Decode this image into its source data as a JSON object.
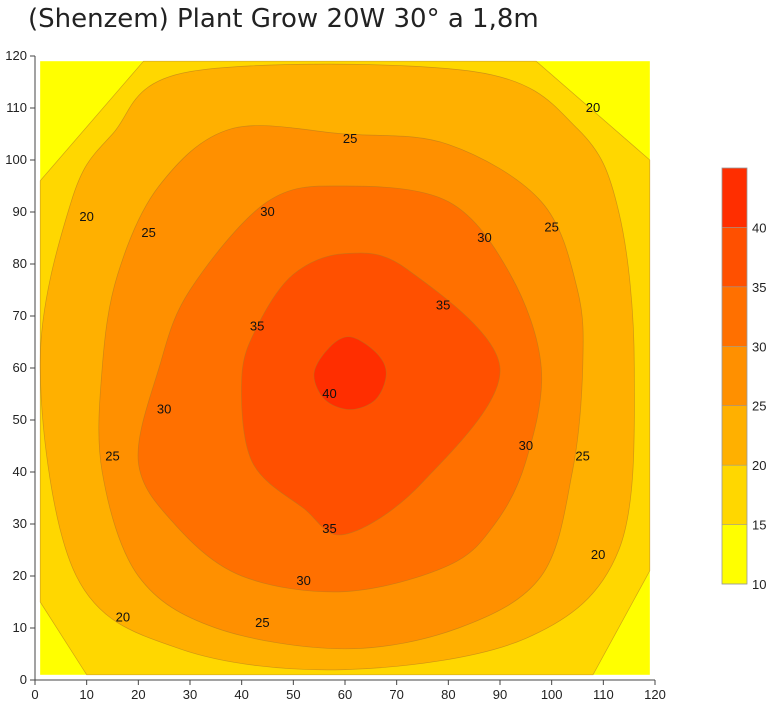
{
  "chart_data": {
    "type": "contour",
    "title": "(Shenzem) Plant Grow 20W 30° a 1,8m",
    "xlabel": "",
    "ylabel": "",
    "xlim": [
      0,
      120
    ],
    "ylim": [
      0,
      120
    ],
    "x_ticks": [
      0,
      10,
      20,
      30,
      40,
      50,
      60,
      70,
      80,
      90,
      100,
      110,
      120
    ],
    "y_ticks": [
      0,
      10,
      20,
      30,
      40,
      50,
      60,
      70,
      80,
      90,
      100,
      110,
      120
    ],
    "grid": false,
    "legend": "right",
    "colorbar": {
      "ticks": [
        10,
        15,
        20,
        25,
        30,
        35,
        40
      ],
      "levels": [
        10,
        15,
        20,
        25,
        30,
        35,
        40,
        45
      ],
      "colors": [
        "#ffff00",
        "#ffd700",
        "#ffb000",
        "#ff9000",
        "#ff7000",
        "#ff5000",
        "#ff2e00"
      ]
    },
    "field_extent": {
      "x": [
        1,
        119
      ],
      "y": [
        1,
        119
      ]
    },
    "contours": [
      {
        "level": 15,
        "fill_above": "#ffd700",
        "points": [
          [
            21,
            119
          ],
          [
            97,
            119
          ],
          [
            119,
            100
          ],
          [
            119,
            21
          ],
          [
            108,
            1
          ],
          [
            10,
            1
          ],
          [
            1,
            15
          ],
          [
            1,
            96
          ]
        ]
      },
      {
        "level": 20,
        "fill_above": "#ffb000",
        "points": [
          [
            30,
            117
          ],
          [
            85,
            117
          ],
          [
            105,
            106
          ],
          [
            113,
            90
          ],
          [
            116,
            60
          ],
          [
            113,
            25
          ],
          [
            95,
            8
          ],
          [
            60,
            2
          ],
          [
            28,
            6
          ],
          [
            8,
            20
          ],
          [
            1,
            60
          ],
          [
            7,
            92
          ],
          [
            15,
            105
          ]
        ]
      },
      {
        "level": 25,
        "fill_above": "#ff9000",
        "points": [
          [
            38,
            106
          ],
          [
            60,
            105
          ],
          [
            80,
            103
          ],
          [
            98,
            92
          ],
          [
            105,
            75
          ],
          [
            106,
            60
          ],
          [
            104,
            40
          ],
          [
            98,
            20
          ],
          [
            82,
            10
          ],
          [
            60,
            6
          ],
          [
            35,
            10
          ],
          [
            20,
            20
          ],
          [
            13,
            40
          ],
          [
            13,
            60
          ],
          [
            16,
            78
          ],
          [
            24,
            95
          ]
        ]
      },
      {
        "level": 30,
        "fill_above": "#ff7000",
        "points": [
          [
            45,
            92
          ],
          [
            60,
            95
          ],
          [
            80,
            92
          ],
          [
            92,
            78
          ],
          [
            98,
            60
          ],
          [
            95,
            42
          ],
          [
            89,
            30
          ],
          [
            80,
            22
          ],
          [
            60,
            17
          ],
          [
            40,
            20
          ],
          [
            27,
            30
          ],
          [
            20,
            42
          ],
          [
            24,
            60
          ],
          [
            30,
            75
          ]
        ]
      },
      {
        "level": 35,
        "fill_above": "#ff5000",
        "points": [
          [
            50,
            78
          ],
          [
            60,
            82
          ],
          [
            72,
            79
          ],
          [
            90,
            60
          ],
          [
            75,
            38
          ],
          [
            60,
            28
          ],
          [
            52,
            33
          ],
          [
            42,
            42
          ],
          [
            40,
            58
          ],
          [
            43,
            68
          ]
        ]
      },
      {
        "level": 40,
        "fill_above": "#ff2e00",
        "points": [
          [
            57,
            64
          ],
          [
            61,
            66
          ],
          [
            66,
            63
          ],
          [
            68,
            59
          ],
          [
            66,
            54
          ],
          [
            61,
            52
          ],
          [
            56,
            54
          ],
          [
            54,
            59
          ]
        ]
      }
    ],
    "contour_labels": [
      {
        "text": "25",
        "x": 61,
        "y": 104
      },
      {
        "text": "20",
        "x": 108,
        "y": 110
      },
      {
        "text": "20",
        "x": 10,
        "y": 89
      },
      {
        "text": "25",
        "x": 22,
        "y": 86
      },
      {
        "text": "30",
        "x": 45,
        "y": 90
      },
      {
        "text": "30",
        "x": 87,
        "y": 85
      },
      {
        "text": "25",
        "x": 100,
        "y": 87
      },
      {
        "text": "35",
        "x": 79,
        "y": 72
      },
      {
        "text": "35",
        "x": 43,
        "y": 68
      },
      {
        "text": "40",
        "x": 57,
        "y": 55
      },
      {
        "text": "30",
        "x": 25,
        "y": 52
      },
      {
        "text": "30",
        "x": 95,
        "y": 45
      },
      {
        "text": "25",
        "x": 106,
        "y": 43
      },
      {
        "text": "25",
        "x": 15,
        "y": 43
      },
      {
        "text": "35",
        "x": 57,
        "y": 29
      },
      {
        "text": "30",
        "x": 52,
        "y": 19
      },
      {
        "text": "20",
        "x": 109,
        "y": 24
      },
      {
        "text": "20",
        "x": 17,
        "y": 12
      },
      {
        "text": "25",
        "x": 44,
        "y": 11
      }
    ]
  }
}
